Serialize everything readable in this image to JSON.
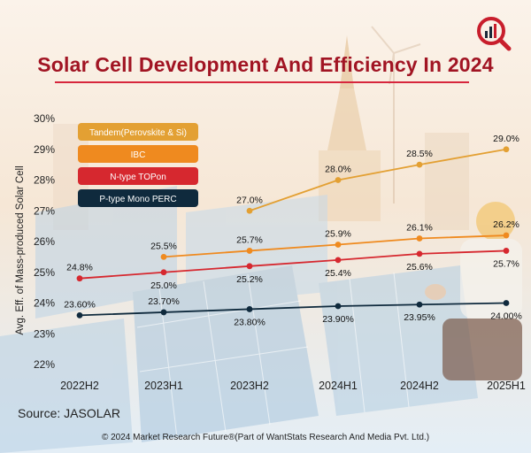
{
  "title": "Solar Cell Development And Efficiency In 2024",
  "source": "Source: JASOLAR",
  "copyright": "© 2024 Market Research Future®(Part of WantStats Research And Media Pvt. Ltd.)",
  "logo_icon": "magnifier-chart-icon",
  "colors": {
    "title": "#a11423",
    "tandem": "#e3a033",
    "ibc": "#ef8a1f",
    "ntype": "#d6282f",
    "ptype": "#0f2a3d"
  },
  "chart_data": {
    "type": "line",
    "title": "Solar Cell Development And Efficiency In 2024",
    "xlabel": "",
    "ylabel": "Avg. Eff. of Mass-produced Solar Cell",
    "categories": [
      "2022H2",
      "2023H1",
      "2023H2",
      "2024H1",
      "2024H2",
      "2025H1"
    ],
    "ylim": [
      22,
      30
    ],
    "yticks": [
      "22%",
      "23%",
      "24%",
      "25%",
      "26%",
      "27%",
      "28%",
      "29%",
      "30%"
    ],
    "legend_position": "top-left",
    "series": [
      {
        "key": "tandem",
        "name": "Tandem(Perovskite & Si)",
        "color": "#e3a033",
        "values": [
          null,
          null,
          27.0,
          28.0,
          28.5,
          29.0
        ],
        "labels": [
          null,
          null,
          "27.0%",
          "28.0%",
          "28.5%",
          "29.0%"
        ]
      },
      {
        "key": "ibc",
        "name": "IBC",
        "color": "#ef8a1f",
        "values": [
          null,
          25.5,
          25.7,
          25.9,
          26.1,
          26.2
        ],
        "labels": [
          null,
          "25.5%",
          "25.7%",
          "25.9%",
          "26.1%",
          "26.2%"
        ]
      },
      {
        "key": "ntype",
        "name": "N-type TOPon",
        "color": "#d6282f",
        "values": [
          24.8,
          25.0,
          25.2,
          25.4,
          25.6,
          25.7
        ],
        "labels": [
          "24.8%",
          "25.0%",
          "25.2%",
          "25.4%",
          "25.6%",
          "25.7%"
        ]
      },
      {
        "key": "ptype",
        "name": "P-type Mono PERC",
        "color": "#0f2a3d",
        "values": [
          23.6,
          23.7,
          23.8,
          23.9,
          23.95,
          24.0
        ],
        "labels": [
          "23.60%",
          "23.70%",
          "23.80%",
          "23.90%",
          "23.95%",
          "24.00%"
        ]
      }
    ]
  }
}
